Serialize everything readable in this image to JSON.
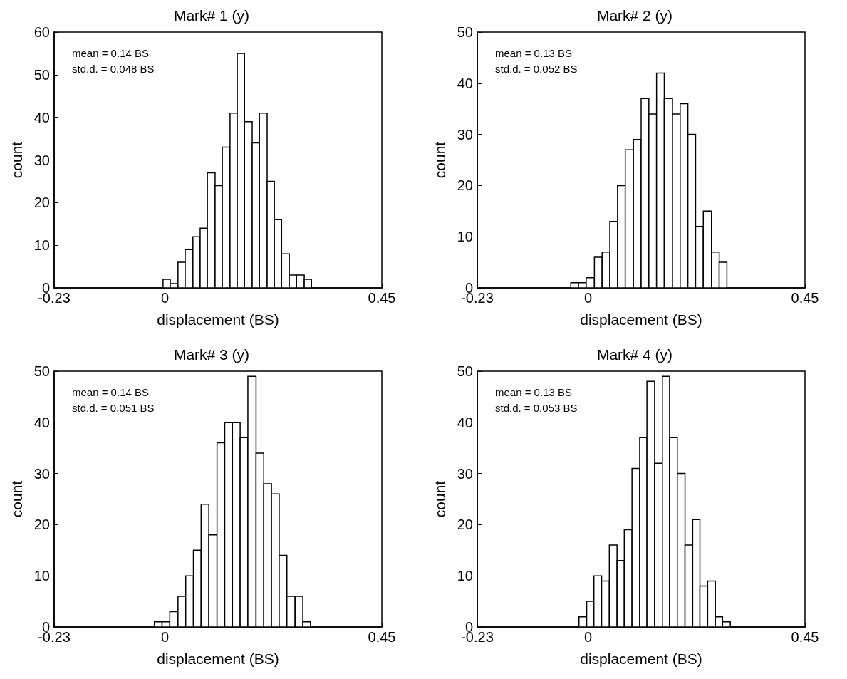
{
  "chart_data": [
    {
      "type": "histogram",
      "title": "Mark# 1 (y)",
      "xlabel": "displacement (BS)",
      "ylabel": "count",
      "annotations": [
        "mean = 0.14 BS",
        "std.d. = 0.048 BS"
      ],
      "color": "#ffffff",
      "bins": [
        -0.004,
        0.011,
        0.027,
        0.042,
        0.058,
        0.073,
        0.088,
        0.104,
        0.119,
        0.135,
        0.15,
        0.165,
        0.181,
        0.196,
        0.212,
        0.227,
        0.242,
        0.258,
        0.273,
        0.289,
        0.304
      ],
      "values": [
        2,
        1,
        6,
        9,
        12,
        14,
        27,
        24,
        33,
        41,
        55,
        39,
        34,
        41,
        25,
        16,
        8,
        3,
        3,
        2
      ],
      "xlim": [
        -0.23,
        0.45
      ],
      "xticks": [
        -0.23,
        0,
        0.45
      ],
      "ylim": [
        0,
        60
      ],
      "yticks": [
        0,
        10,
        20,
        30,
        40,
        50,
        60
      ],
      "grid": false
    },
    {
      "type": "histogram",
      "title": "Mark# 2 (y)",
      "xlabel": "displacement (BS)",
      "ylabel": "count",
      "annotations": [
        "mean = 0.13 BS",
        "std.d. = 0.052 BS"
      ],
      "color": "#ffffff",
      "bins": [
        -0.036,
        -0.02,
        -0.004,
        0.013,
        0.029,
        0.045,
        0.061,
        0.077,
        0.094,
        0.11,
        0.126,
        0.142,
        0.158,
        0.175,
        0.191,
        0.207,
        0.223,
        0.239,
        0.256,
        0.272,
        0.288
      ],
      "values": [
        1,
        1,
        2,
        6,
        7,
        13,
        20,
        27,
        29,
        37,
        34,
        42,
        37,
        34,
        36,
        30,
        12,
        15,
        7,
        5
      ],
      "xlim": [
        -0.23,
        0.45
      ],
      "xticks": [
        -0.23,
        0,
        0.45
      ],
      "ylim": [
        0,
        50
      ],
      "yticks": [
        0,
        10,
        20,
        30,
        40,
        50
      ],
      "grid": false
    },
    {
      "type": "histogram",
      "title": "Mark# 3 (y)",
      "xlabel": "displacement (BS)",
      "ylabel": "count",
      "annotations": [
        "mean = 0.14 BS",
        "std.d. = 0.051 BS"
      ],
      "color": "#ffffff",
      "bins": [
        -0.022,
        -0.006,
        0.01,
        0.027,
        0.043,
        0.059,
        0.075,
        0.091,
        0.108,
        0.124,
        0.14,
        0.156,
        0.172,
        0.189,
        0.205,
        0.221,
        0.237,
        0.253,
        0.27,
        0.286,
        0.302
      ],
      "values": [
        1,
        1,
        3,
        6,
        10,
        15,
        24,
        18,
        36,
        40,
        40,
        37,
        49,
        34,
        28,
        26,
        14,
        6,
        6,
        1
      ],
      "xlim": [
        -0.23,
        0.45
      ],
      "xticks": [
        -0.23,
        0,
        0.45
      ],
      "ylim": [
        0,
        50
      ],
      "yticks": [
        0,
        10,
        20,
        30,
        40,
        50
      ],
      "grid": false
    },
    {
      "type": "histogram",
      "title": "Mark# 4 (y)",
      "xlabel": "displacement (BS)",
      "ylabel": "count",
      "annotations": [
        "mean = 0.13 BS",
        "std.d. = 0.053 BS"
      ],
      "color": "#ffffff",
      "bins": [
        -0.019,
        -0.003,
        0.012,
        0.028,
        0.044,
        0.06,
        0.075,
        0.091,
        0.107,
        0.122,
        0.138,
        0.154,
        0.169,
        0.185,
        0.201,
        0.217,
        0.232,
        0.248,
        0.264,
        0.279,
        0.295
      ],
      "values": [
        2,
        5,
        10,
        9,
        16,
        13,
        19,
        31,
        37,
        48,
        32,
        49,
        37,
        30,
        16,
        21,
        8,
        9,
        2,
        1
      ],
      "xlim": [
        -0.23,
        0.45
      ],
      "xticks": [
        -0.23,
        0,
        0.45
      ],
      "ylim": [
        0,
        50
      ],
      "yticks": [
        0,
        10,
        20,
        30,
        40,
        50
      ],
      "grid": false
    }
  ]
}
